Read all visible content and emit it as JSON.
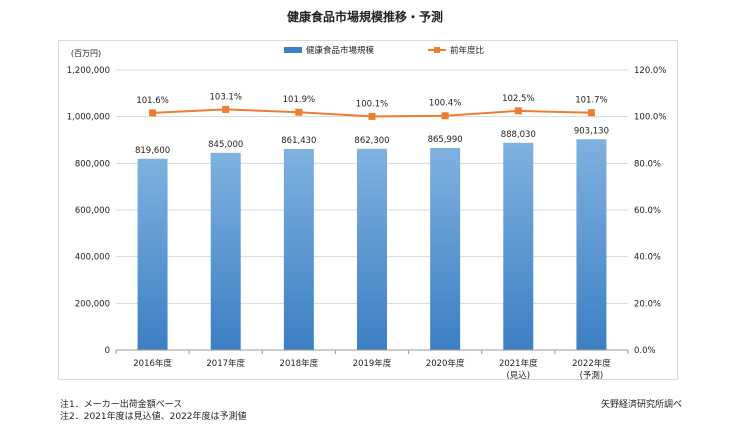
{
  "chart_data": {
    "type": "bar+line",
    "title": "健康食品市場規模推移・予測",
    "y_left_unit": "(百万円)",
    "y_left_ticks": [
      "0",
      "200,000",
      "400,000",
      "600,000",
      "800,000",
      "1,000,000",
      "1,200,000"
    ],
    "y_left_range": [
      0,
      1200000
    ],
    "y_right_ticks": [
      "0.0%",
      "20.0%",
      "40.0%",
      "60.0%",
      "80.0%",
      "100.0%",
      "120.0%"
    ],
    "y_right_range": [
      0,
      120
    ],
    "categories": [
      "2016年度",
      "2017年度",
      "2018年度",
      "2019年度",
      "2020年度",
      "2021年度",
      "2022年度"
    ],
    "category_sublabels": [
      "",
      "",
      "",
      "",
      "",
      "(見込)",
      "(予測)"
    ],
    "series": [
      {
        "name": "健康食品市場規模",
        "type": "bar",
        "axis": "left",
        "values": [
          819600,
          845000,
          861430,
          862300,
          865990,
          888030,
          903130
        ],
        "labels": [
          "819,600",
          "845,000",
          "861,430",
          "862,300",
          "865,990",
          "888,030",
          "903,130"
        ]
      },
      {
        "name": "前年度比",
        "type": "line",
        "axis": "right",
        "values": [
          101.6,
          103.1,
          101.9,
          100.1,
          100.4,
          102.5,
          101.7
        ],
        "labels": [
          "101.6%",
          "103.1%",
          "101.9%",
          "100.1%",
          "100.4%",
          "102.5%",
          "101.7%"
        ]
      }
    ],
    "legend_position": "top",
    "colors": {
      "bar_top": "#7fb1e0",
      "bar_bottom": "#3c7fc4",
      "line": "#ed7d31"
    }
  },
  "notes": {
    "note1": "注1．メーカー出荷金額ベース",
    "note2": "注2．2021年度は見込値、2022年度は予測値",
    "source": "矢野経済研究所調べ"
  }
}
